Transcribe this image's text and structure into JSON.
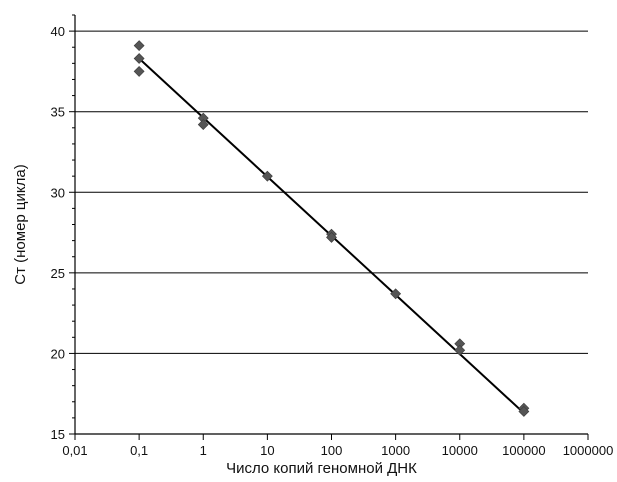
{
  "chart_data": {
    "type": "scatter",
    "title": "",
    "xlabel": "Число копий геномной ДНК",
    "ylabel": "Ст (номер цикла)",
    "x_scale": "log",
    "xlim": [
      0.01,
      1000000
    ],
    "ylim": [
      15,
      41
    ],
    "x_ticks": [
      0.01,
      0.1,
      1,
      10,
      100,
      1000,
      10000,
      100000,
      1000000
    ],
    "x_tick_labels": [
      "0,01",
      "0,1",
      "1",
      "10",
      "100",
      "1000",
      "10000",
      "100000",
      "1000000"
    ],
    "y_ticks": [
      15,
      20,
      25,
      30,
      35,
      40
    ],
    "y_tick_labels": [
      "15",
      "20",
      "25",
      "30",
      "35",
      "40"
    ],
    "grid": "horizontal",
    "legend": "none",
    "series": [
      {
        "marker": "diamond",
        "color": "#555555",
        "points": [
          {
            "x": 0.1,
            "y": 39.1
          },
          {
            "x": 0.1,
            "y": 38.3
          },
          {
            "x": 0.1,
            "y": 37.5
          },
          {
            "x": 1,
            "y": 34.6
          },
          {
            "x": 1,
            "y": 34.2
          },
          {
            "x": 10,
            "y": 31.0
          },
          {
            "x": 100,
            "y": 27.4
          },
          {
            "x": 100,
            "y": 27.2
          },
          {
            "x": 1000,
            "y": 23.7
          },
          {
            "x": 10000,
            "y": 20.6
          },
          {
            "x": 10000,
            "y": 20.2
          },
          {
            "x": 100000,
            "y": 16.6
          },
          {
            "x": 100000,
            "y": 16.4
          }
        ]
      }
    ],
    "trendline": {
      "type": "linear-log",
      "color": "#000000",
      "from": {
        "x": 0.1,
        "y": 38.3
      },
      "to": {
        "x": 100000,
        "y": 16.3
      }
    }
  }
}
